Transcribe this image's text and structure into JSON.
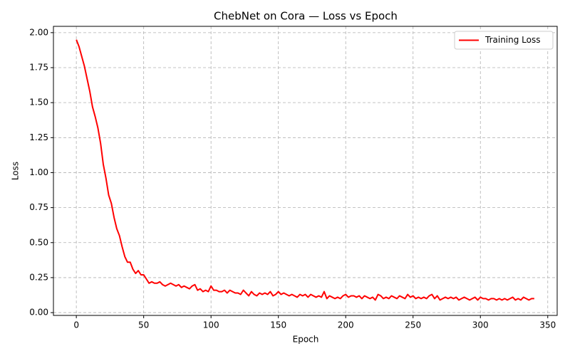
{
  "chart_data": {
    "type": "line",
    "title": "ChebNet on Cora — Loss vs Epoch",
    "xlabel": "Epoch",
    "ylabel": "Loss",
    "x": [
      0,
      2,
      4,
      6,
      8,
      10,
      12,
      14,
      16,
      18,
      20,
      22,
      24,
      26,
      28,
      30,
      32,
      34,
      36,
      38,
      40,
      42,
      44,
      46,
      48,
      50,
      52,
      54,
      56,
      58,
      60,
      62,
      64,
      66,
      68,
      70,
      72,
      74,
      76,
      78,
      80,
      82,
      84,
      86,
      88,
      90,
      92,
      94,
      96,
      98,
      100,
      102,
      104,
      106,
      108,
      110,
      112,
      114,
      116,
      118,
      120,
      122,
      124,
      126,
      128,
      130,
      132,
      134,
      136,
      138,
      140,
      142,
      144,
      146,
      148,
      150,
      152,
      154,
      156,
      158,
      160,
      162,
      164,
      166,
      168,
      170,
      172,
      174,
      176,
      178,
      180,
      182,
      184,
      186,
      188,
      190,
      192,
      194,
      196,
      198,
      200,
      202,
      204,
      206,
      208,
      210,
      212,
      214,
      216,
      218,
      220,
      222,
      224,
      226,
      228,
      230,
      232,
      234,
      236,
      238,
      240,
      242,
      244,
      246,
      248,
      250,
      252,
      254,
      256,
      258,
      260,
      262,
      264,
      266,
      268,
      270,
      272,
      274,
      276,
      278,
      280,
      282,
      284,
      286,
      288,
      290,
      292,
      294,
      296,
      298,
      300,
      302,
      304,
      306,
      308,
      310,
      312,
      314,
      316,
      318,
      320,
      322,
      324,
      326,
      328,
      330,
      332,
      334,
      336,
      338,
      340
    ],
    "series": [
      {
        "name": "Training Loss",
        "color": "#ff0000",
        "values": [
          1.95,
          1.9,
          1.83,
          1.76,
          1.67,
          1.58,
          1.47,
          1.4,
          1.32,
          1.21,
          1.06,
          0.96,
          0.84,
          0.78,
          0.68,
          0.6,
          0.55,
          0.47,
          0.4,
          0.36,
          0.36,
          0.31,
          0.28,
          0.3,
          0.27,
          0.27,
          0.24,
          0.21,
          0.22,
          0.21,
          0.21,
          0.22,
          0.2,
          0.19,
          0.2,
          0.21,
          0.2,
          0.19,
          0.2,
          0.18,
          0.19,
          0.18,
          0.17,
          0.19,
          0.2,
          0.16,
          0.17,
          0.15,
          0.16,
          0.15,
          0.19,
          0.16,
          0.16,
          0.15,
          0.15,
          0.16,
          0.14,
          0.16,
          0.15,
          0.14,
          0.14,
          0.13,
          0.16,
          0.14,
          0.12,
          0.15,
          0.13,
          0.12,
          0.14,
          0.13,
          0.14,
          0.13,
          0.15,
          0.12,
          0.13,
          0.15,
          0.13,
          0.14,
          0.13,
          0.12,
          0.13,
          0.12,
          0.11,
          0.13,
          0.12,
          0.13,
          0.11,
          0.13,
          0.12,
          0.11,
          0.12,
          0.11,
          0.15,
          0.1,
          0.12,
          0.11,
          0.1,
          0.11,
          0.1,
          0.12,
          0.13,
          0.11,
          0.12,
          0.12,
          0.11,
          0.12,
          0.1,
          0.12,
          0.11,
          0.1,
          0.11,
          0.09,
          0.13,
          0.12,
          0.1,
          0.11,
          0.1,
          0.12,
          0.11,
          0.1,
          0.12,
          0.11,
          0.1,
          0.13,
          0.11,
          0.12,
          0.1,
          0.11,
          0.1,
          0.11,
          0.1,
          0.12,
          0.13,
          0.1,
          0.12,
          0.09,
          0.1,
          0.11,
          0.1,
          0.11,
          0.1,
          0.11,
          0.09,
          0.1,
          0.11,
          0.1,
          0.09,
          0.1,
          0.11,
          0.09,
          0.11,
          0.1,
          0.1,
          0.09,
          0.1,
          0.1,
          0.09,
          0.1,
          0.09,
          0.1,
          0.09,
          0.1,
          0.11,
          0.09,
          0.1,
          0.09,
          0.11,
          0.1,
          0.09,
          0.1,
          0.1
        ]
      }
    ],
    "xlim": [
      -17,
      357
    ],
    "ylim": [
      -0.02,
      2.045
    ],
    "xticks": [
      0,
      50,
      100,
      150,
      200,
      250,
      300,
      350
    ],
    "yticks": [
      {
        "value": 0,
        "label": "0.00"
      },
      {
        "value": 0.25,
        "label": "0.25"
      },
      {
        "value": 0.5,
        "label": "0.50"
      },
      {
        "value": 0.75,
        "label": "0.75"
      },
      {
        "value": 1,
        "label": "1.00"
      },
      {
        "value": 1.25,
        "label": "1.25"
      },
      {
        "value": 1.5,
        "label": "1.50"
      },
      {
        "value": 1.75,
        "label": "1.75"
      },
      {
        "value": 2,
        "label": "2.00"
      }
    ],
    "grid": true,
    "legend": "upper right"
  }
}
